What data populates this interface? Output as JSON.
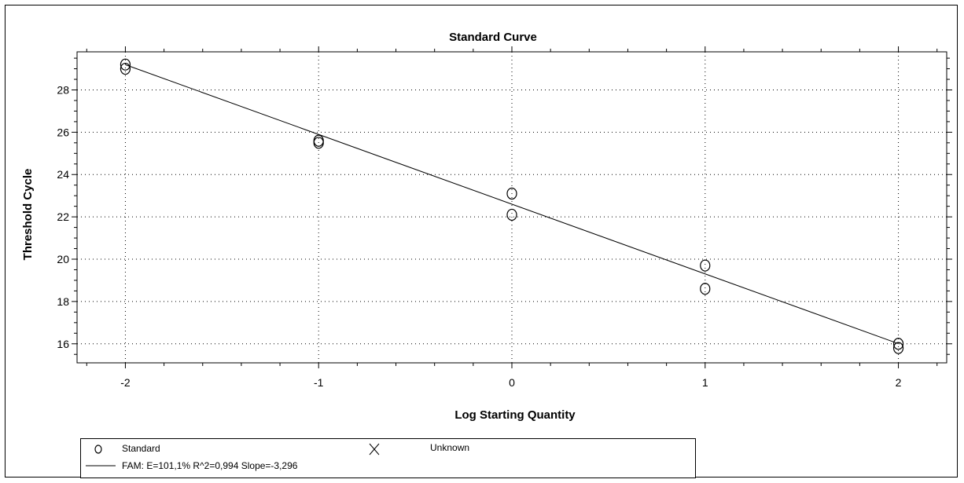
{
  "chart_data": {
    "type": "scatter",
    "title": "Standard Curve",
    "xlabel": "Log Starting Quantity",
    "ylabel": "Threshold Cycle",
    "xlim": [
      -2.25,
      2.25
    ],
    "ylim": [
      15.1,
      29.8
    ],
    "xticks": [
      -2,
      -1,
      0,
      1,
      2
    ],
    "xtick_labels": [
      "-2",
      "-1",
      "0",
      "1",
      "2"
    ],
    "yticks": [
      16,
      18,
      20,
      22,
      24,
      26,
      28
    ],
    "ytick_labels": [
      "16",
      "18",
      "20",
      "22",
      "24",
      "26",
      "28"
    ],
    "grid": true,
    "legend_position": "bottom-left",
    "series": [
      {
        "name": "Standard",
        "marker": "circle",
        "points": [
          {
            "x": -2,
            "y": 29.2
          },
          {
            "x": -2,
            "y": 29.0
          },
          {
            "x": -1,
            "y": 25.6
          },
          {
            "x": -1,
            "y": 25.5
          },
          {
            "x": 0,
            "y": 23.1
          },
          {
            "x": 0,
            "y": 22.1
          },
          {
            "x": 1,
            "y": 19.7
          },
          {
            "x": 1,
            "y": 18.6
          },
          {
            "x": 2,
            "y": 16.0
          },
          {
            "x": 2,
            "y": 15.8
          }
        ]
      }
    ],
    "fit_line": {
      "slope": -3.296,
      "intercept": 22.6,
      "x_range": [
        -2,
        2
      ]
    }
  },
  "legend": {
    "standard_label": "Standard",
    "unknown_label": "Unknown",
    "fit_label": "FAM: E=101,1% R^2=0,994 Slope=-3,296"
  }
}
